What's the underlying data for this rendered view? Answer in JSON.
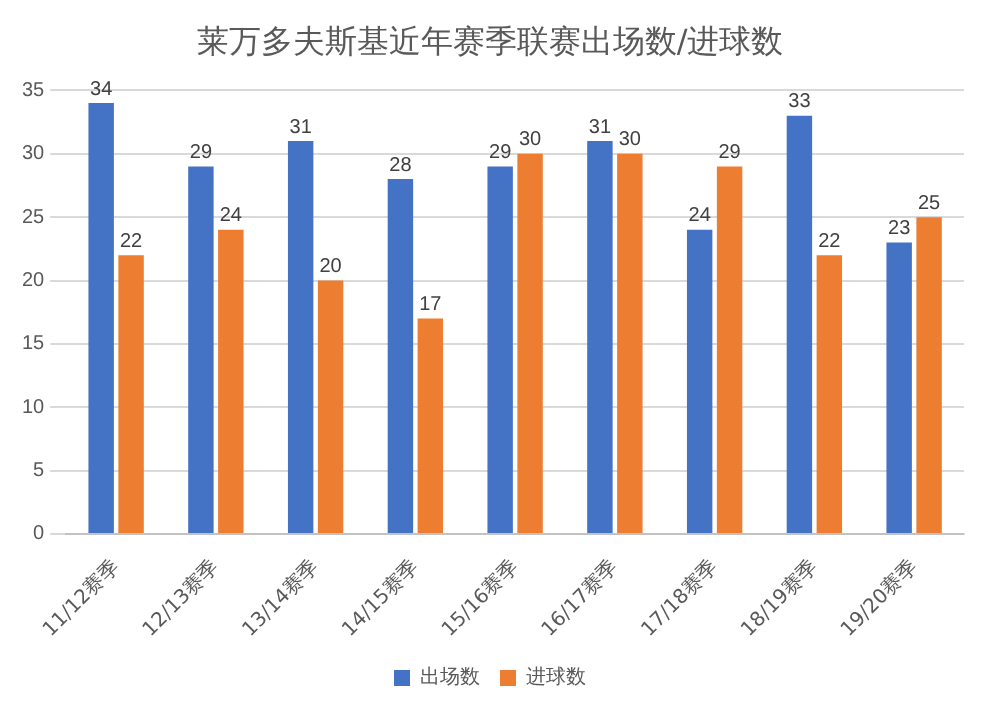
{
  "chart_data": {
    "type": "bar",
    "title": "莱万多夫斯基近年赛季联赛出场数/进球数",
    "categories": [
      "11/12赛季",
      "12/13赛季",
      "13/14赛季",
      "14/15赛季",
      "15/16赛季",
      "16/17赛季",
      "17/18赛季",
      "18/19赛季",
      "19/20赛季"
    ],
    "series": [
      {
        "name": "出场数",
        "color": "#4472c4",
        "values": [
          34,
          29,
          31,
          28,
          29,
          31,
          24,
          33,
          23
        ]
      },
      {
        "name": "进球数",
        "color": "#ed7d31",
        "values": [
          22,
          24,
          20,
          17,
          30,
          30,
          29,
          22,
          25
        ]
      }
    ],
    "ylim": [
      0,
      35
    ],
    "yticks": [
      0,
      5,
      10,
      15,
      20,
      25,
      30,
      35
    ],
    "grid": "y",
    "legend": "bottom",
    "data_labels": true
  }
}
